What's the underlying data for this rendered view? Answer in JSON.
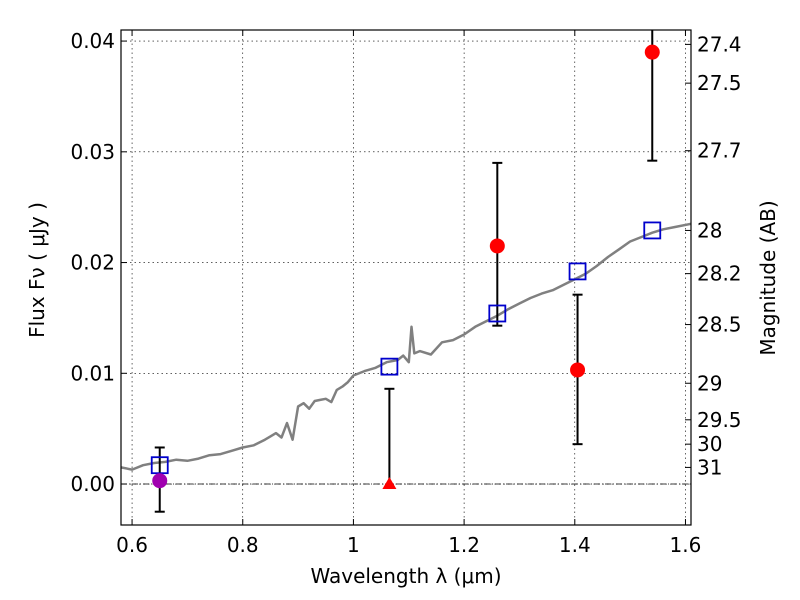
{
  "chart_data": {
    "type": "scatter",
    "xlabel": "Wavelength  λ (μm)",
    "ylabel": "Flux  Fν  ( μJy )",
    "ylabel_right": "Magnitude (AB)",
    "xlim": [
      0.58,
      1.61
    ],
    "ylim": [
      -0.0037,
      0.041
    ],
    "x_ticks": [
      0.6,
      0.8,
      1.0,
      1.2,
      1.4,
      1.6
    ],
    "x_tick_labels": [
      "0.6",
      "0.8",
      "1",
      "1.2",
      "1.4",
      "1.6"
    ],
    "y_ticks": [
      0.0,
      0.01,
      0.02,
      0.03,
      0.04
    ],
    "y_tick_labels": [
      "0.00",
      "0.01",
      "0.02",
      "0.03",
      "0.04"
    ],
    "right_ticks": [
      {
        "label": "27.4",
        "flux": 0.0397
      },
      {
        "label": "27.5",
        "flux": 0.0362
      },
      {
        "label": "27.7",
        "flux": 0.0301
      },
      {
        "label": "28",
        "flux": 0.0229
      },
      {
        "label": "28.2",
        "flux": 0.019
      },
      {
        "label": "28.5",
        "flux": 0.0144
      },
      {
        "label": "29",
        "flux": 0.0091
      },
      {
        "label": "29.5",
        "flux": 0.0058
      },
      {
        "label": "30",
        "flux": 0.0036
      },
      {
        "label": "31",
        "flux": 0.0015
      }
    ],
    "grid": true,
    "zero_line": true,
    "colors": {
      "model": "#808080",
      "observed": "#ff0000",
      "optical": "#a000b0",
      "model_points": "#0000cc",
      "errorbar": "#000000"
    },
    "model_spectrum": {
      "x": [
        0.58,
        0.6,
        0.62,
        0.64,
        0.66,
        0.68,
        0.7,
        0.72,
        0.74,
        0.76,
        0.78,
        0.8,
        0.82,
        0.84,
        0.85,
        0.86,
        0.87,
        0.88,
        0.89,
        0.9,
        0.91,
        0.92,
        0.93,
        0.94,
        0.95,
        0.96,
        0.97,
        0.98,
        0.99,
        1.0,
        1.02,
        1.04,
        1.06,
        1.08,
        1.09,
        1.1,
        1.105,
        1.11,
        1.12,
        1.14,
        1.16,
        1.18,
        1.2,
        1.22,
        1.24,
        1.26,
        1.28,
        1.3,
        1.32,
        1.34,
        1.36,
        1.38,
        1.4,
        1.42,
        1.44,
        1.46,
        1.48,
        1.5,
        1.52,
        1.54,
        1.56,
        1.58,
        1.61
      ],
      "y": [
        0.0015,
        0.0013,
        0.0017,
        0.0019,
        0.002,
        0.0022,
        0.0021,
        0.0023,
        0.0026,
        0.0027,
        0.003,
        0.0033,
        0.0035,
        0.004,
        0.0043,
        0.0046,
        0.0042,
        0.0055,
        0.004,
        0.007,
        0.0073,
        0.0068,
        0.0075,
        0.0076,
        0.0077,
        0.0074,
        0.0085,
        0.0088,
        0.0092,
        0.0098,
        0.0102,
        0.0105,
        0.011,
        0.0112,
        0.0116,
        0.011,
        0.0142,
        0.0118,
        0.012,
        0.0117,
        0.0128,
        0.013,
        0.0135,
        0.0142,
        0.0147,
        0.0152,
        0.0158,
        0.0163,
        0.0168,
        0.0172,
        0.0175,
        0.018,
        0.0185,
        0.019,
        0.0197,
        0.0205,
        0.0212,
        0.0219,
        0.0223,
        0.0227,
        0.023,
        0.0232,
        0.0235
      ]
    },
    "model_points": {
      "x": [
        0.65,
        1.065,
        1.26,
        1.405,
        1.54
      ],
      "y": [
        0.0017,
        0.0106,
        0.0154,
        0.0192,
        0.0229
      ]
    },
    "observed": {
      "x": [
        1.26,
        1.405,
        1.54
      ],
      "y": [
        0.0215,
        0.0103,
        0.039
      ],
      "err_low": [
        0.0072,
        0.0067,
        0.0098
      ],
      "err_high": [
        0.0075,
        0.0068,
        0.003
      ]
    },
    "optical_point": {
      "x": 0.65,
      "y": 0.0003,
      "err_low": 0.0028,
      "err_high": 0.003
    },
    "upper_limit": {
      "x": 1.065,
      "y": 0.0,
      "err_high": 0.0086
    }
  }
}
